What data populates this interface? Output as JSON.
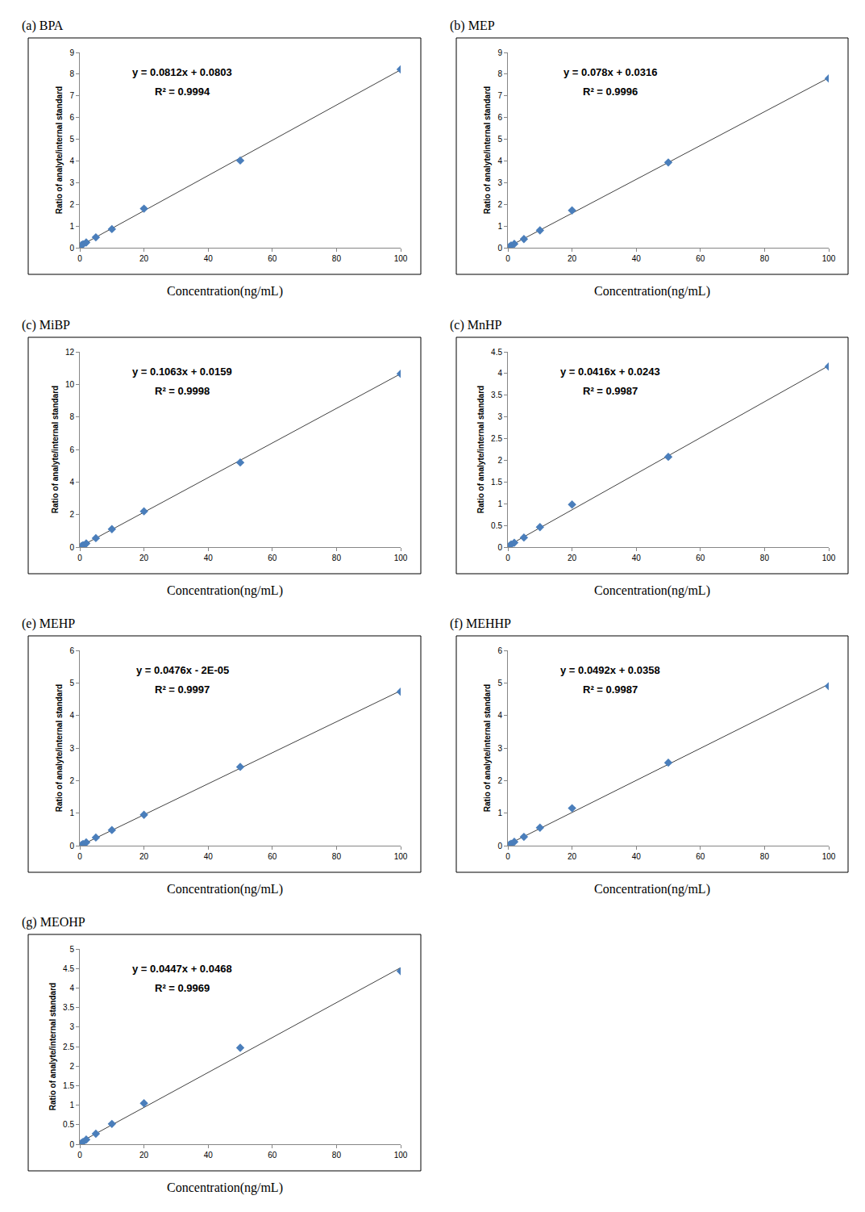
{
  "chart_data": [
    {
      "type": "scatter",
      "title": "(a) BPA",
      "x_label": "Concentration(ng/mL)",
      "y_label": "Ratio of analyte/internal standard",
      "x": [
        0.5,
        1,
        2,
        5,
        10,
        20,
        50,
        100
      ],
      "values": [
        0.12,
        0.16,
        0.24,
        0.48,
        0.86,
        1.8,
        4.02,
        8.22
      ],
      "trendline": {
        "x": [
          0.5,
          100
        ],
        "values": [
          0.12,
          8.2
        ]
      },
      "annotations": [
        "y = 0.0812x + 0.0803",
        "R² = 0.9994"
      ],
      "xlim": [
        0,
        100
      ],
      "xticks": [
        0,
        20,
        40,
        60,
        80,
        100
      ],
      "ylim": [
        0,
        9
      ],
      "yticks": [
        0,
        1,
        2,
        3,
        4,
        5,
        6,
        7,
        8,
        9
      ],
      "color": "#4a7ebb",
      "marker": "diamond",
      "line_style": "solid",
      "grid": false
    },
    {
      "type": "scatter",
      "title": "(b) MEP",
      "x_label": "Concentration(ng/mL)",
      "y_label": "Ratio of analyte/internal standard",
      "x": [
        0.5,
        1,
        2,
        5,
        10,
        20,
        50,
        100
      ],
      "values": [
        0.05,
        0.1,
        0.18,
        0.4,
        0.8,
        1.72,
        3.93,
        7.8
      ],
      "trendline": {
        "x": [
          0.5,
          100
        ],
        "values": [
          0.07,
          7.83
        ]
      },
      "annotations": [
        "y = 0.078x + 0.0316",
        "R² = 0.9996"
      ],
      "xlim": [
        0,
        100
      ],
      "xticks": [
        0,
        20,
        40,
        60,
        80,
        100
      ],
      "ylim": [
        0,
        9
      ],
      "yticks": [
        0,
        1,
        2,
        3,
        4,
        5,
        6,
        7,
        8,
        9
      ],
      "color": "#4a7ebb",
      "marker": "diamond",
      "line_style": "solid",
      "grid": false
    },
    {
      "type": "scatter",
      "title": "(c) MiBP",
      "x_label": "Concentration(ng/mL)",
      "y_label": "Ratio of analyte/internal standard",
      "x": [
        0.5,
        1,
        2,
        5,
        10,
        20,
        50,
        100
      ],
      "values": [
        0.06,
        0.12,
        0.22,
        0.55,
        1.1,
        2.2,
        5.2,
        10.65
      ],
      "trendline": {
        "x": [
          0.5,
          100
        ],
        "values": [
          0.07,
          10.65
        ]
      },
      "annotations": [
        "y = 0.1063x + 0.0159",
        "R² = 0.9998"
      ],
      "xlim": [
        0,
        100
      ],
      "xticks": [
        0,
        20,
        40,
        60,
        80,
        100
      ],
      "ylim": [
        0,
        12
      ],
      "yticks": [
        0,
        2,
        4,
        6,
        8,
        10,
        12
      ],
      "color": "#4a7ebb",
      "marker": "diamond",
      "line_style": "solid",
      "grid": false
    },
    {
      "type": "scatter",
      "title": "(c) MnHP",
      "x_label": "Concentration(ng/mL)",
      "y_label": "Ratio of analyte/internal standard",
      "x": [
        0.5,
        1,
        2,
        5,
        10,
        20,
        50,
        100
      ],
      "values": [
        0.03,
        0.06,
        0.1,
        0.22,
        0.46,
        0.98,
        2.08,
        4.16
      ],
      "trendline": {
        "x": [
          0.5,
          100
        ],
        "values": [
          0.05,
          4.18
        ]
      },
      "annotations": [
        "y = 0.0416x + 0.0243",
        "R² = 0.9987"
      ],
      "xlim": [
        0,
        100
      ],
      "xticks": [
        0,
        20,
        40,
        60,
        80,
        100
      ],
      "ylim": [
        0,
        4.5
      ],
      "yticks": [
        0,
        0.5,
        1,
        1.5,
        2,
        2.5,
        3,
        3.5,
        4,
        4.5
      ],
      "color": "#4a7ebb",
      "marker": "diamond",
      "line_style": "solid",
      "grid": false
    },
    {
      "type": "scatter",
      "title": "(e) MEHP",
      "x_label": "Concentration(ng/mL)",
      "y_label": "Ratio of analyte/internal standard",
      "x": [
        0.5,
        1,
        2,
        5,
        10,
        20,
        50,
        100
      ],
      "values": [
        0.02,
        0.05,
        0.1,
        0.25,
        0.48,
        0.95,
        2.42,
        4.73
      ],
      "trendline": {
        "x": [
          0.5,
          100
        ],
        "values": [
          0.02,
          4.76
        ]
      },
      "annotations": [
        "y = 0.0476x - 2E-05",
        "R² = 0.9997"
      ],
      "xlim": [
        0,
        100
      ],
      "xticks": [
        0,
        20,
        40,
        60,
        80,
        100
      ],
      "ylim": [
        0,
        6
      ],
      "yticks": [
        0,
        1,
        2,
        3,
        4,
        5,
        6
      ],
      "color": "#4a7ebb",
      "marker": "diamond",
      "line_style": "solid",
      "grid": false
    },
    {
      "type": "scatter",
      "title": "(f) MEHHP",
      "x_label": "Concentration(ng/mL)",
      "y_label": "Ratio of analyte/internal standard",
      "x": [
        0.5,
        1,
        2,
        5,
        10,
        20,
        50,
        100
      ],
      "values": [
        0.03,
        0.06,
        0.12,
        0.27,
        0.55,
        1.15,
        2.55,
        4.9
      ],
      "trendline": {
        "x": [
          0.5,
          100
        ],
        "values": [
          0.06,
          4.96
        ]
      },
      "annotations": [
        "y = 0.0492x + 0.0358",
        "R² = 0.9987"
      ],
      "xlim": [
        0,
        100
      ],
      "xticks": [
        0,
        20,
        40,
        60,
        80,
        100
      ],
      "ylim": [
        0,
        6
      ],
      "yticks": [
        0,
        1,
        2,
        3,
        4,
        5,
        6
      ],
      "color": "#4a7ebb",
      "marker": "diamond",
      "line_style": "solid",
      "grid": false
    },
    {
      "type": "scatter",
      "title": "(g) MEOHP",
      "x_label": "Concentration(ng/mL)",
      "y_label": "Ratio of analyte/internal standard",
      "x": [
        0.5,
        1,
        2,
        5,
        10,
        20,
        50,
        100
      ],
      "values": [
        0.03,
        0.06,
        0.12,
        0.27,
        0.52,
        1.05,
        2.47,
        4.43
      ],
      "trendline": {
        "x": [
          0.5,
          100
        ],
        "values": [
          0.07,
          4.52
        ]
      },
      "annotations": [
        "y = 0.0447x + 0.0468",
        "R² = 0.9969"
      ],
      "xlim": [
        0,
        100
      ],
      "xticks": [
        0,
        20,
        40,
        60,
        80,
        100
      ],
      "ylim": [
        0,
        5
      ],
      "yticks": [
        0,
        0.5,
        1,
        1.5,
        2,
        2.5,
        3,
        3.5,
        4,
        4.5,
        5
      ],
      "color": "#4a7ebb",
      "marker": "diamond",
      "line_style": "solid",
      "grid": false
    }
  ]
}
